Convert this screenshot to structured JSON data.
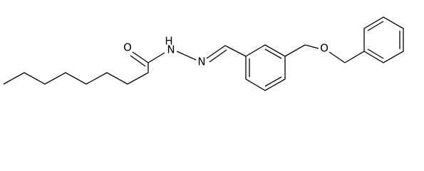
{
  "atoms": [
    {
      "label": "O"
    },
    {
      "label": "N"
    },
    {
      "label": "H"
    },
    {
      "label": "N"
    },
    {
      "label": "O"
    }
  ]
}
